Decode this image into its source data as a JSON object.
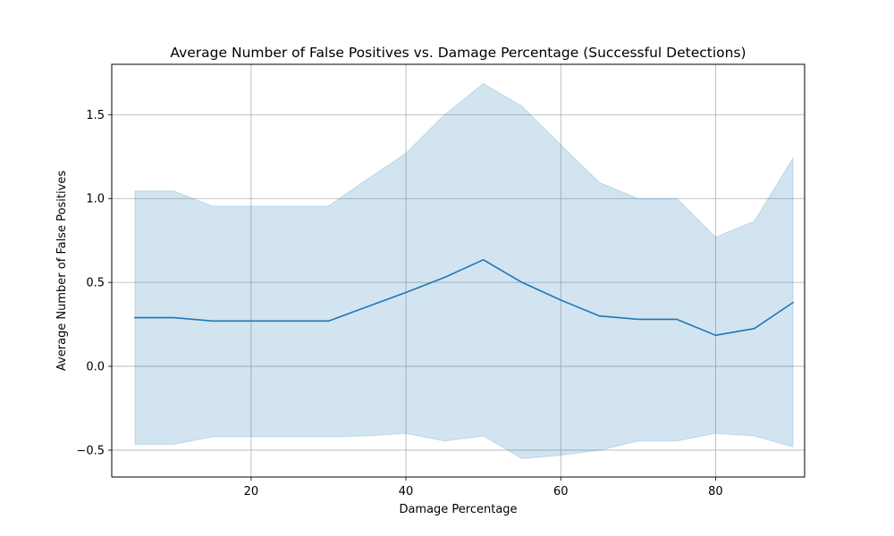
{
  "chart_data": {
    "type": "line",
    "title": "Average Number of False Positives vs. Damage Percentage (Successful Detections)",
    "xlabel": "Damage Percentage",
    "ylabel": "Average Number of False Positives",
    "xlim": [
      2,
      91.5
    ],
    "ylim": [
      -0.66,
      1.8
    ],
    "xticks": [
      20,
      40,
      60,
      80
    ],
    "yticks": [
      -0.5,
      0.0,
      0.5,
      1.0,
      1.5
    ],
    "xtick_labels": [
      "20",
      "40",
      "60",
      "80"
    ],
    "ytick_labels": [
      "−0.5",
      "0.0",
      "0.5",
      "1.0",
      "1.5"
    ],
    "grid": true,
    "x": [
      5,
      10,
      15,
      20,
      25,
      30,
      35,
      40,
      45,
      50,
      55,
      60,
      65,
      70,
      75,
      80,
      85,
      90
    ],
    "series": [
      {
        "values": [
          0.29,
          0.29,
          0.27,
          0.27,
          0.27,
          0.27,
          0.355,
          0.44,
          0.53,
          0.635,
          0.5,
          0.395,
          0.3,
          0.28,
          0.28,
          0.185,
          0.225,
          0.38
        ],
        "upper": [
          1.045,
          1.045,
          0.955,
          0.955,
          0.955,
          0.955,
          1.115,
          1.27,
          1.5,
          1.685,
          1.55,
          1.32,
          1.095,
          1.0,
          1.0,
          0.77,
          0.865,
          1.24
        ],
        "lower": [
          -0.465,
          -0.465,
          -0.42,
          -0.42,
          -0.42,
          -0.42,
          -0.415,
          -0.4,
          -0.445,
          -0.415,
          -0.55,
          -0.53,
          -0.5,
          -0.445,
          -0.445,
          -0.4,
          -0.415,
          -0.48
        ],
        "color": "#1f77b4",
        "band_color": "#1f77b4"
      }
    ]
  }
}
